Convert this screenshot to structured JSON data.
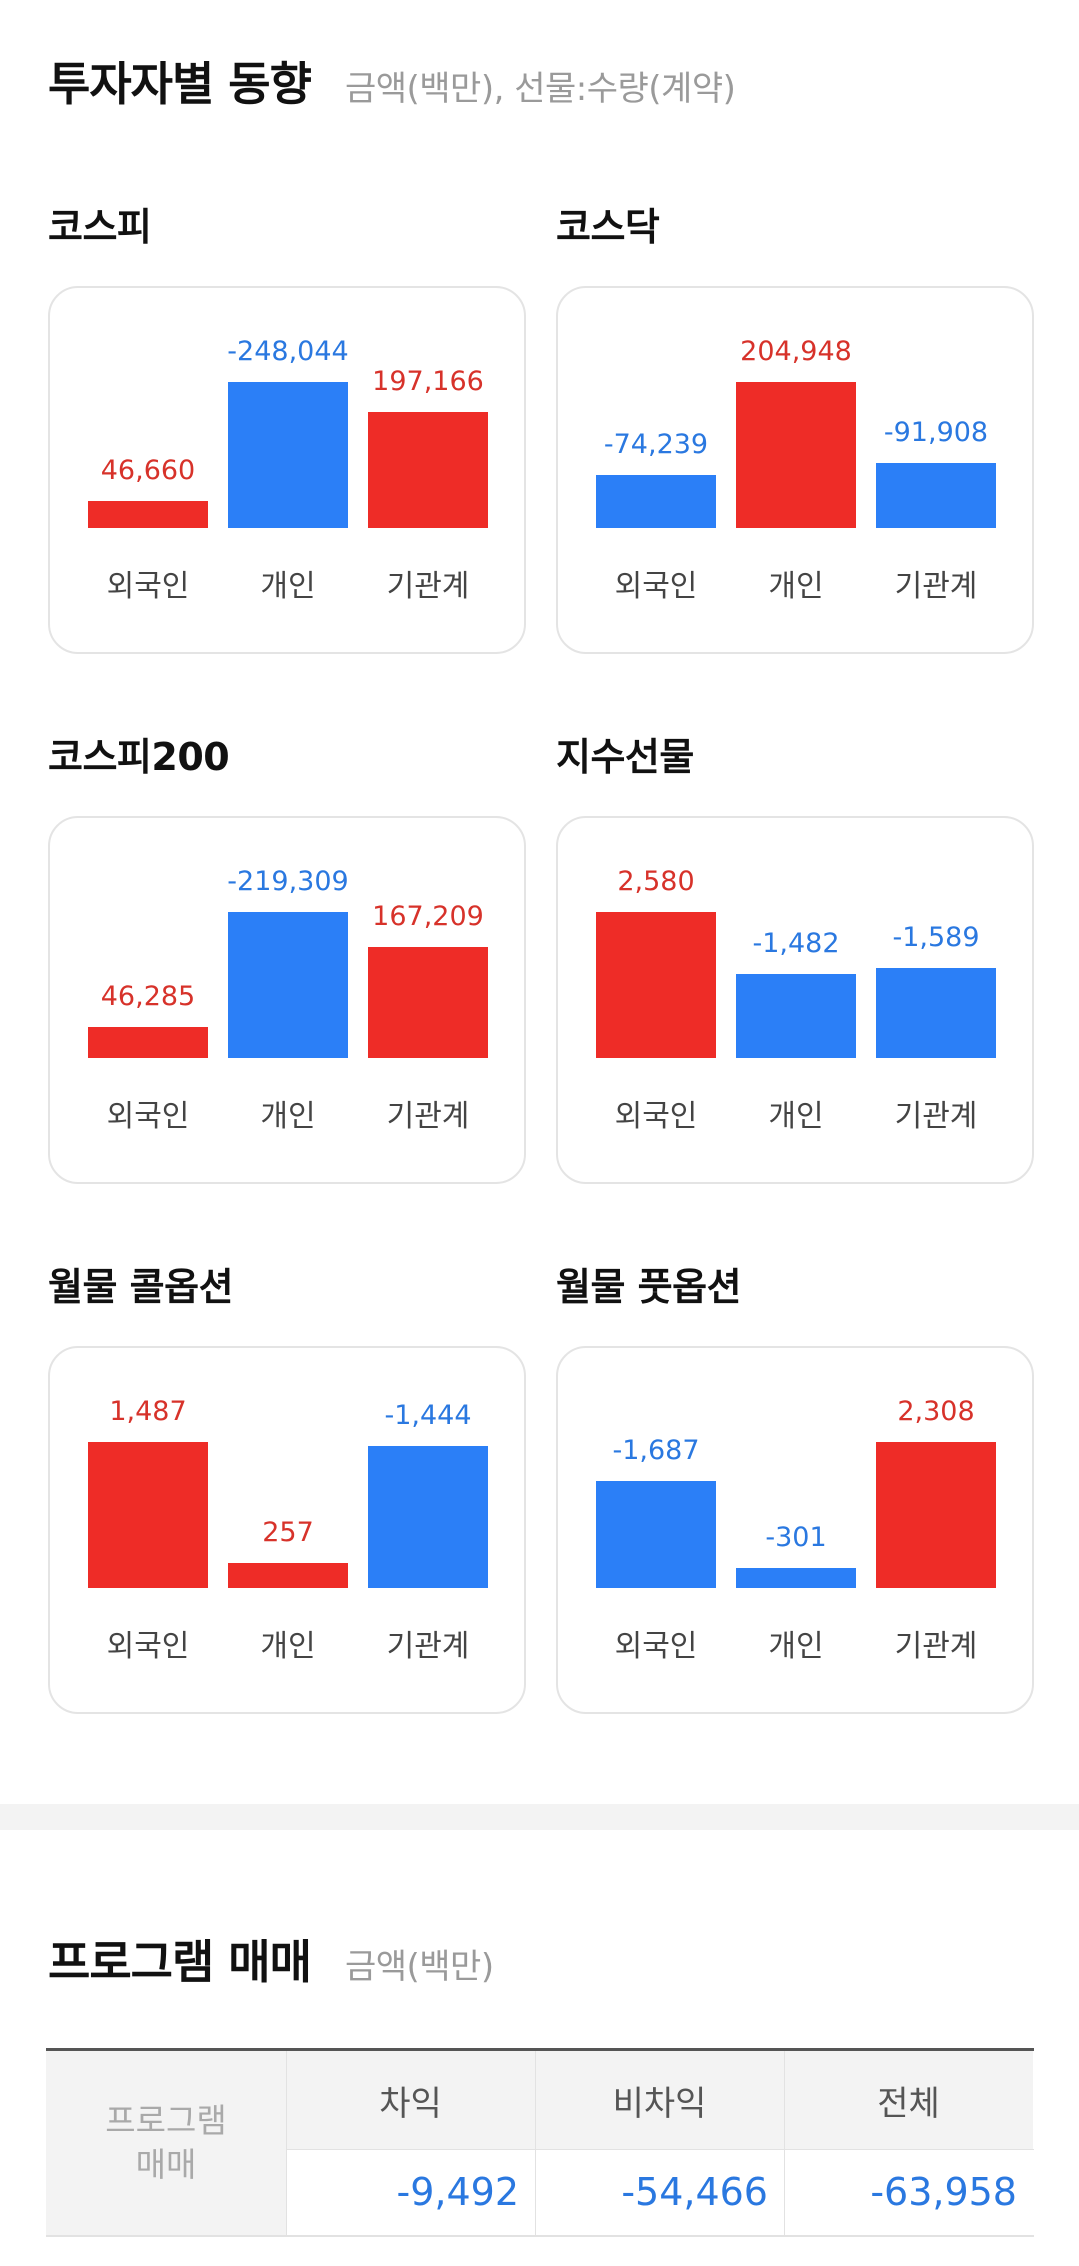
{
  "investor_trends": {
    "title": "투자자별 동향",
    "subtitle": "금액(백만), 선물:수량(계약)",
    "categories": [
      "외국인",
      "개인",
      "기관계"
    ],
    "colors": {
      "positive": "#ee2c27",
      "negative": "#2b7ff7"
    },
    "blocks": [
      {
        "title": "코스피",
        "values": [
          "46,660",
          "-248,044",
          "197,166"
        ]
      },
      {
        "title": "코스닥",
        "values": [
          "-74,239",
          "204,948",
          "-91,908"
        ]
      },
      {
        "title": "코스피200",
        "values": [
          "46,285",
          "-219,309",
          "167,209"
        ]
      },
      {
        "title": "지수선물",
        "values": [
          "2,580",
          "-1,482",
          "-1,589"
        ]
      },
      {
        "title": "월물 콜옵션",
        "values": [
          "1,487",
          "257",
          "-1,444"
        ]
      },
      {
        "title": "월물 풋옵션",
        "values": [
          "-1,687",
          "-301",
          "2,308"
        ]
      }
    ]
  },
  "chart_data": [
    {
      "type": "bar",
      "title": "코스피",
      "categories": [
        "외국인",
        "개인",
        "기관계"
      ],
      "values": [
        46660,
        -248044,
        197166
      ]
    },
    {
      "type": "bar",
      "title": "코스닥",
      "categories": [
        "외국인",
        "개인",
        "기관계"
      ],
      "values": [
        -74239,
        204948,
        -91908
      ]
    },
    {
      "type": "bar",
      "title": "코스피200",
      "categories": [
        "외국인",
        "개인",
        "기관계"
      ],
      "values": [
        46285,
        -219309,
        167209
      ]
    },
    {
      "type": "bar",
      "title": "지수선물",
      "categories": [
        "외국인",
        "개인",
        "기관계"
      ],
      "values": [
        2580,
        -1482,
        -1589
      ]
    },
    {
      "type": "bar",
      "title": "월물 콜옵션",
      "categories": [
        "외국인",
        "개인",
        "기관계"
      ],
      "values": [
        1487,
        257,
        -1444
      ]
    },
    {
      "type": "bar",
      "title": "월물 풋옵션",
      "categories": [
        "외국인",
        "개인",
        "기관계"
      ],
      "values": [
        -1687,
        -301,
        2308
      ]
    }
  ],
  "program_trading": {
    "title": "프로그램 매매",
    "subtitle": "금액(백만)",
    "row_header_line1": "프로그램",
    "row_header_line2": "매매",
    "columns": [
      "차익",
      "비차익",
      "전체"
    ],
    "values": [
      "-9,492",
      "-54,466",
      "-63,958"
    ]
  }
}
